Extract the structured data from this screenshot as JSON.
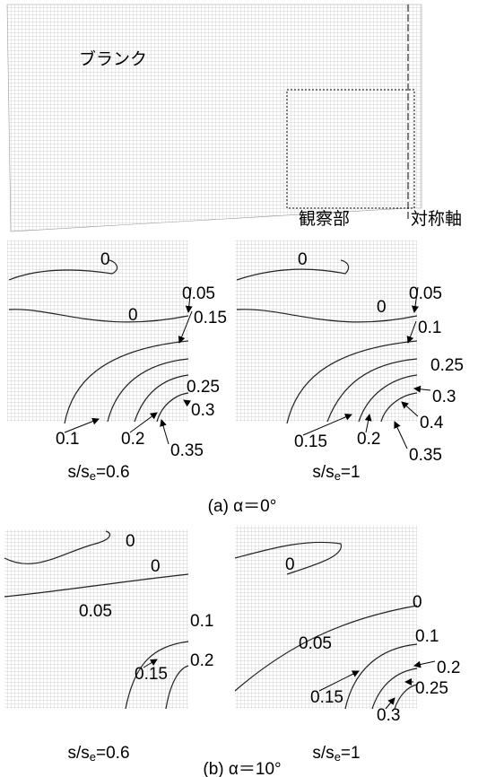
{
  "top": {
    "blank": "ブランク",
    "observed": "観察部",
    "axis": "対称軸"
  },
  "panels": [
    {
      "labels": [
        "0",
        "0.05",
        "0",
        "0.15",
        "0.25",
        "0.3",
        "0.1",
        "0.2",
        "0.35"
      ],
      "caption": {
        "main": "s/s",
        "sub": "e",
        "tail": "=0.6"
      }
    },
    {
      "labels": [
        "0",
        "0.05",
        "0",
        "0.1",
        "0.25",
        "0.3",
        "0.4",
        "0.15",
        "0.2",
        "0.35"
      ],
      "caption": {
        "main": "s/s",
        "sub": "e",
        "tail": "=1"
      }
    },
    {
      "labels": [
        "0",
        "0",
        "0.05",
        "0.1",
        "0.2",
        "0.15"
      ],
      "caption": {
        "main": "s/s",
        "sub": "e",
        "tail": "=0.6"
      }
    },
    {
      "labels": [
        "0",
        "0",
        "0.1",
        "0.2",
        "0.25",
        "0.05",
        "0.15",
        "0.3"
      ],
      "caption": {
        "main": "s/s",
        "sub": "e",
        "tail": "=1"
      }
    }
  ],
  "figure_captions": [
    "(a) α＝0°",
    "(b) α＝10°"
  ]
}
